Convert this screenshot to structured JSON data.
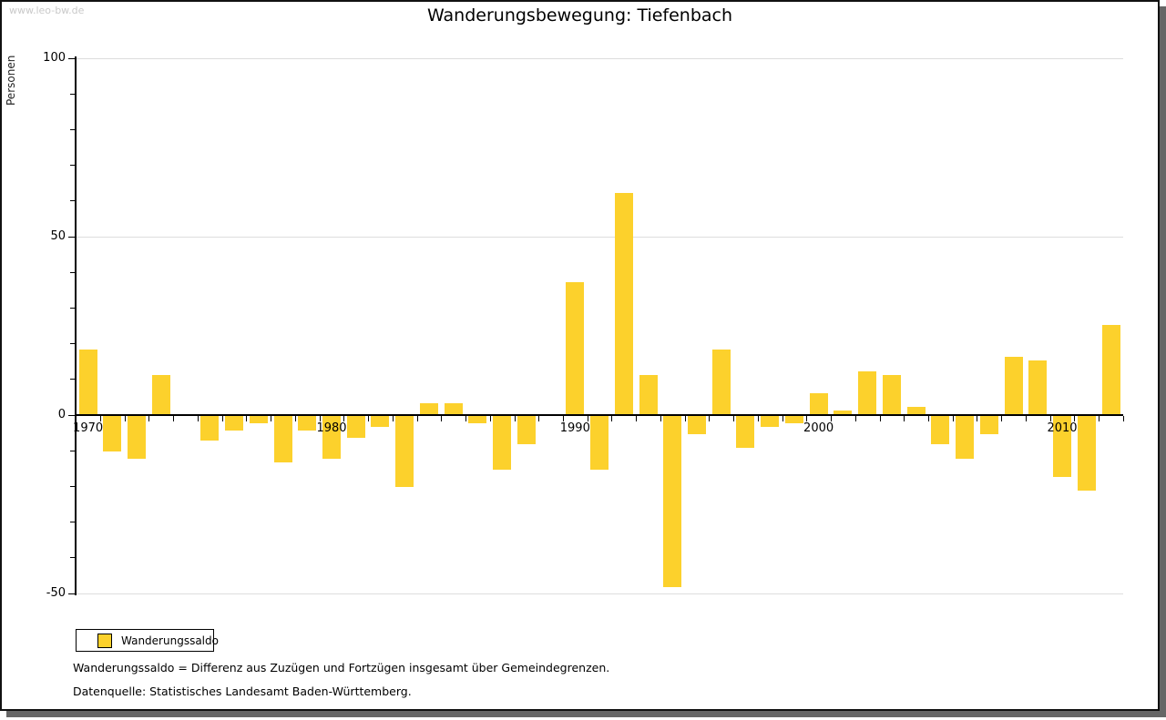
{
  "watermark": "www.leo-bw.de",
  "title": "Wanderungsbewegung: Tiefenbach",
  "legend": {
    "label": "Wanderungssaldo"
  },
  "footnotes": [
    "Wanderungssaldo = Differenz aus Zuzügen und Fortzügen insgesamt über Gemeindegrenzen.",
    "Datenquelle: Statistisches Landesamt Baden-Württemberg."
  ],
  "colors": {
    "bar": "#FCD12C",
    "grid": "#DDDDDD",
    "axis": "#000000",
    "watermark": "#C9C9C9",
    "frame_shadow": "#666666"
  },
  "chart_data": {
    "type": "bar",
    "title": "Wanderungsbewegung: Tiefenbach",
    "xlabel": "",
    "ylabel": "Personen",
    "series_name": "Wanderungssaldo",
    "x": [
      1970,
      1971,
      1972,
      1973,
      1974,
      1975,
      1976,
      1977,
      1978,
      1979,
      1980,
      1981,
      1982,
      1983,
      1984,
      1985,
      1986,
      1987,
      1988,
      1989,
      1990,
      1991,
      1992,
      1993,
      1994,
      1995,
      1996,
      1997,
      1998,
      1999,
      2000,
      2001,
      2002,
      2003,
      2004,
      2005,
      2006,
      2007,
      2008,
      2009,
      2010,
      2011,
      2012
    ],
    "values": [
      18,
      -10,
      -12,
      11,
      0,
      -7,
      -4,
      -2,
      -13,
      -4,
      -12,
      -6,
      -3,
      -20,
      3,
      3,
      -2,
      -15,
      -8,
      0,
      37,
      -15,
      62,
      11,
      -48,
      -5,
      18,
      -9,
      -3,
      -2,
      6,
      1,
      12,
      11,
      2,
      -8,
      -12,
      -5,
      16,
      15,
      -17,
      -21,
      25
    ],
    "bar_color": "#FCD12C",
    "ylim": [
      -55,
      105
    ],
    "y_major_ticks": [
      -50,
      0,
      50,
      100
    ],
    "y_minor_tick_step": 10,
    "gridlines_at": [
      100,
      50,
      -50
    ],
    "x_labeled_years": [
      1970,
      1980,
      1990,
      2000,
      2010
    ],
    "grid": "horizontal-only",
    "legend_position": "bottom-left"
  }
}
